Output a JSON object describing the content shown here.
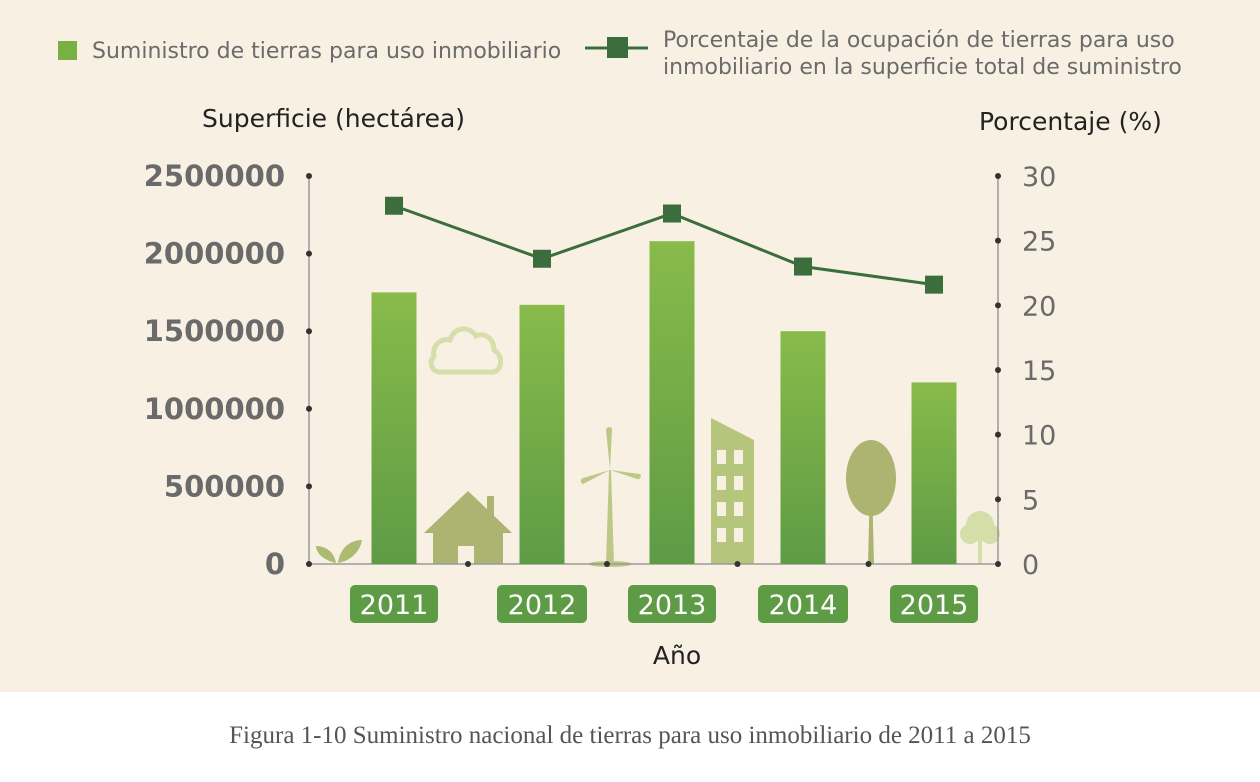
{
  "chart_data": {
    "type": "bar+line",
    "categories": [
      "2011",
      "2012",
      "2013",
      "2014",
      "2015"
    ],
    "xlabel": "Año",
    "ylabel_left": "Superficie (hectárea)",
    "ylabel_right": "Porcentaje (%)",
    "ylim_left": [
      0,
      2500000
    ],
    "ylim_right": [
      0,
      30
    ],
    "yticks_left": [
      "0",
      "500000",
      "1000000",
      "1500000",
      "2000000",
      "2500000"
    ],
    "yticks_right": [
      "0",
      "5",
      "10",
      "15",
      "20",
      "25",
      "30"
    ],
    "grid": false,
    "legend_position": "top",
    "series": [
      {
        "name": "Suministro de tierras para uso inmobiliario",
        "type": "bar",
        "axis": "left",
        "values": [
          1750000,
          1670000,
          2080000,
          1500000,
          1170000
        ],
        "color": "#78b043"
      },
      {
        "name": "Porcentaje de la ocupación de tierras para uso inmobiliario en la superficie total de suministro",
        "name_lines": [
          "Porcentaje de la ocupación de tierras para uso",
          "inmobiliario en la superficie total de suministro"
        ],
        "type": "line",
        "axis": "right",
        "values": [
          27.7,
          23.6,
          27.1,
          23.0,
          21.6
        ],
        "color": "#3b6e3c"
      }
    ]
  },
  "caption": "Figura 1-10 Suministro nacional de tierras para uso inmobiliario de 2011 a 2015"
}
